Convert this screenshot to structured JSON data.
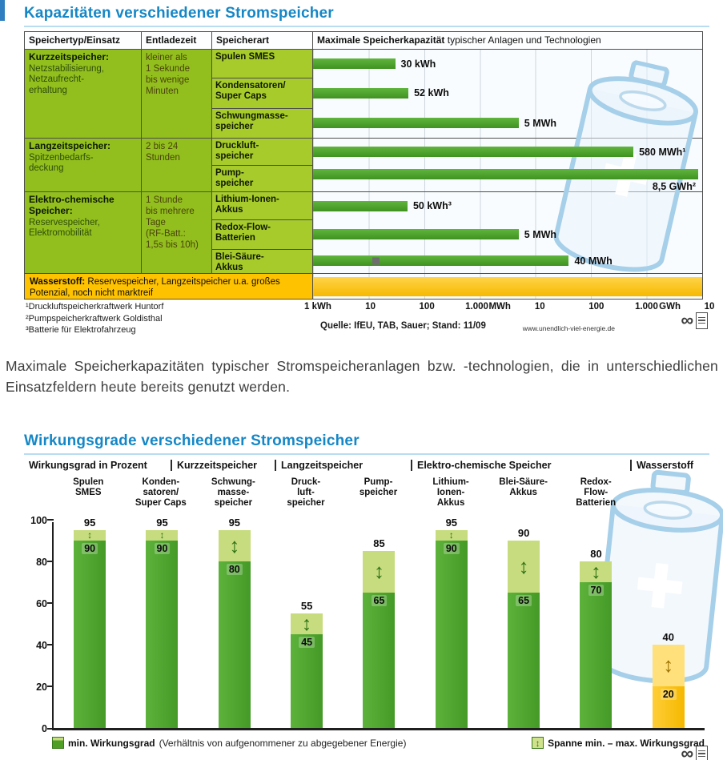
{
  "page": {
    "caption": "Maximale Speicherkapazitäten typischer Stromspeicheranlagen bzw. -technologien, die in unterschiedlichen Einsatzfeldern heute bereits genutzt werden."
  },
  "icons": {
    "span_arrow": "↕",
    "infinity": "∞"
  },
  "capacity_chart": {
    "title": "Kapazitäten verschiedener Stromspeicher",
    "header": {
      "col_type": "Speichertyp/Einsatz",
      "col_discharge": "Entladezeit",
      "col_art": "Speicherart",
      "col_chart_bold": "Maximale Speicherkapazität",
      "col_chart_rest": " typischer Anlagen und Technologien"
    },
    "groups": [
      {
        "name": "Kurzzeitspeicher:",
        "desc": "Netzstabilisierung,\nNetzaufrecht-\nerhaltung",
        "discharge": "kleiner als\n1 Sekunde\nbis wenige\nMinuten"
      },
      {
        "name": "Langzeitspeicher:",
        "desc": "Spitzenbedarfs-\ndeckung",
        "discharge": "2 bis 24\nStunden"
      },
      {
        "name": "Elektro-chemische Speicher:",
        "desc": "Reservespeicher,\nElektromobilität",
        "discharge": "1 Stunde\nbis mehrere\nTage\n(RF-Batt.:\n1,5s bis 10h)"
      }
    ],
    "hydrogen_row": {
      "bold": "Wasserstoff:",
      "text": " Reservespeicher, Langzeitspeicher u.a. großes Potenzial, noch nicht marktreif"
    },
    "footnotes": [
      "¹Druckluftspeicherkraftwerk Huntorf",
      "²Pumpspeicherkraftwerk Goldisthal",
      "³Batterie für Elektrofahrzeug"
    ],
    "source": "Quelle: IfEU, TAB, Sauer; Stand: 11/09",
    "website": "www.unendlich-viel-energie.de"
  },
  "efficiency_chart": {
    "title": "Wirkungsgrade verschiedener Stromspeicher",
    "axis_label": "Wirkungsgrad in Prozent",
    "legend": {
      "min_bold": "min. Wirkungsgrad",
      "min_rest": " (Verhältnis von aufgenommener zu abgegebener Energie)",
      "span_bold": "Spanne min. – max. Wirkungsgrad"
    }
  },
  "chart_data": [
    {
      "type": "bar",
      "title": "Kapazitäten verschiedener Stromspeicher — Maximale Speicherkapazität typischer Anlagen und Technologien",
      "orientation": "horizontal",
      "xscale": "log",
      "x_unit": "kWh",
      "xlim": [
        1,
        10000000
      ],
      "x_ticks": [
        "1 kWh",
        "10",
        "100",
        "1.000",
        "MWh",
        "10",
        "100",
        "1.000",
        "GWh",
        "10"
      ],
      "categories": [
        "Spulen SMES",
        "Kondensatoren/\nSuper Caps",
        "Schwungmasse-\nspeicher",
        "Druckluft-\nspeicher",
        "Pump-\nspeicher",
        "Lithium-Ionen-\nAkkus",
        "Redox-Flow-\nBatterien",
        "Blei-Säure-\nAkkus"
      ],
      "values_kwh": [
        30,
        52,
        5000,
        580000,
        8500000,
        50,
        5000,
        40000
      ],
      "bar_labels": [
        "30 kWh",
        "52 kWh",
        "5 MWh",
        "580 MWh¹",
        "8,5 GWh²",
        "50 kWh³",
        "5 MWh",
        "40 MWh"
      ],
      "bar_color": "#4ba02c",
      "hydrogen_color": "#ffc200"
    },
    {
      "type": "bar",
      "title": "Wirkungsgrade verschiedener Stromspeicher",
      "ylabel": "Wirkungsgrad in Prozent",
      "ylim": [
        0,
        100
      ],
      "yticks": [
        0,
        20,
        40,
        60,
        80,
        100
      ],
      "grid": false,
      "group_headers": [
        "Kurzzeitspeicher",
        "Langzeitspeicher",
        "Elektro-chemische Speicher",
        "Wasserstoff"
      ],
      "categories": [
        "Spulen\nSMES",
        "Konden-\nsatoren/\nSuper Caps",
        "Schwung-\nmasse-\nspeicher",
        "Druck-\nluft-\nspeicher",
        "Pump-\nspeicher",
        "Lithium-\nIonen-\nAkkus",
        "Blei-Säure-\nAkkus",
        "Redox-\nFlow-\nBatterien",
        ""
      ],
      "series": [
        {
          "name": "min. Wirkungsgrad",
          "values": [
            90,
            90,
            80,
            45,
            65,
            90,
            65,
            70,
            20
          ]
        },
        {
          "name": "max. Wirkungsgrad",
          "values": [
            95,
            95,
            95,
            55,
            85,
            95,
            90,
            80,
            40
          ]
        }
      ],
      "colors": {
        "bar_min": "#4f9f27",
        "bar_span": "#c6dc7e",
        "hydrogen_min": "#fdc300",
        "hydrogen_span": "#ffe07a"
      }
    }
  ]
}
